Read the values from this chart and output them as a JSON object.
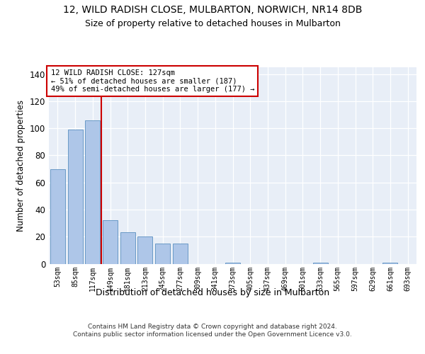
{
  "title": "12, WILD RADISH CLOSE, MULBARTON, NORWICH, NR14 8DB",
  "subtitle": "Size of property relative to detached houses in Mulbarton",
  "xlabel": "Distribution of detached houses by size in Mulbarton",
  "ylabel": "Number of detached properties",
  "categories": [
    "53sqm",
    "85sqm",
    "117sqm",
    "149sqm",
    "181sqm",
    "213sqm",
    "245sqm",
    "277sqm",
    "309sqm",
    "341sqm",
    "373sqm",
    "405sqm",
    "437sqm",
    "469sqm",
    "501sqm",
    "533sqm",
    "565sqm",
    "597sqm",
    "629sqm",
    "661sqm",
    "693sqm"
  ],
  "values": [
    70,
    99,
    106,
    32,
    23,
    20,
    15,
    15,
    0,
    0,
    1,
    0,
    0,
    0,
    0,
    1,
    0,
    0,
    0,
    1,
    0
  ],
  "bar_color": "#aec6e8",
  "bar_edgecolor": "#5a8fc0",
  "vline_x": 2.5,
  "vline_color": "#cc0000",
  "annotation_text": "12 WILD RADISH CLOSE: 127sqm\n← 51% of detached houses are smaller (187)\n49% of semi-detached houses are larger (177) →",
  "annotation_box_edgecolor": "#cc0000",
  "ylim": [
    0,
    145
  ],
  "yticks": [
    0,
    20,
    40,
    60,
    80,
    100,
    120,
    140
  ],
  "bg_color": "#e8eef7",
  "footer": "Contains HM Land Registry data © Crown copyright and database right 2024.\nContains public sector information licensed under the Open Government Licence v3.0."
}
